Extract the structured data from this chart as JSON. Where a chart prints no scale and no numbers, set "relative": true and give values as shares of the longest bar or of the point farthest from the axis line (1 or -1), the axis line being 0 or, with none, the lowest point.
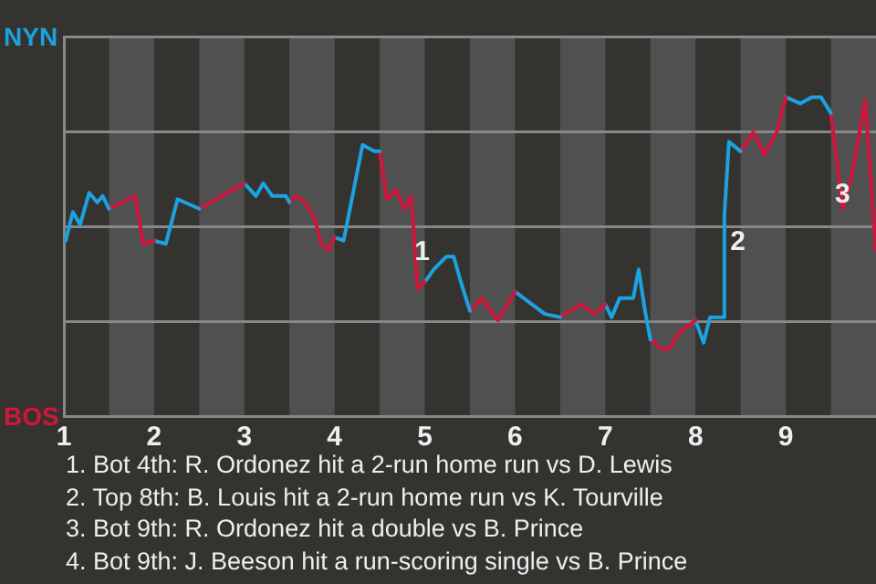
{
  "chart_data": {
    "type": "line",
    "relative": true,
    "xlim": [
      1,
      10
    ],
    "xticks": [
      1,
      2,
      3,
      4,
      5,
      6,
      7,
      8,
      9
    ],
    "grid": "y",
    "legend": false,
    "marker": "none",
    "line_style": "solid",
    "series": [
      {
        "color": "#1aa3e0",
        "x": [
          1.02,
          1.1,
          1.18,
          1.28,
          1.37,
          1.43,
          1.5
        ],
        "values": [
          0.55,
          0.64,
          0.6,
          0.7,
          0.67,
          0.69,
          0.65
        ]
      },
      {
        "color": "#d0163c",
        "x": [
          1.5,
          1.79,
          1.88,
          2
        ],
        "values": [
          0.65,
          0.69,
          0.54,
          0.55
        ]
      },
      {
        "color": "#1aa3e0",
        "x": [
          2,
          2.13,
          2.26,
          2.5
        ],
        "values": [
          0.55,
          0.54,
          0.68,
          0.65
        ]
      },
      {
        "color": "#d0163c",
        "x": [
          2.5,
          3
        ],
        "values": [
          0.65,
          0.73
        ]
      },
      {
        "color": "#1aa3e0",
        "x": [
          3,
          3.13,
          3.21,
          3.31,
          3.46,
          3.5
        ],
        "values": [
          0.73,
          0.69,
          0.73,
          0.69,
          0.69,
          0.67
        ]
      },
      {
        "color": "#d0163c",
        "x": [
          3.5,
          3.58,
          3.67,
          3.78,
          3.85,
          3.93,
          4
        ],
        "values": [
          0.67,
          0.69,
          0.67,
          0.62,
          0.54,
          0.52,
          0.56
        ]
      },
      {
        "color": "#1aa3e0",
        "x": [
          4,
          4.1,
          4.31,
          4.44,
          4.5
        ],
        "values": [
          0.56,
          0.55,
          0.85,
          0.83,
          0.83
        ]
      },
      {
        "color": "#d0163c",
        "x": [
          4.5,
          4.58,
          4.68,
          4.77,
          4.85,
          4.92,
          5
        ],
        "values": [
          0.83,
          0.68,
          0.71,
          0.65,
          0.69,
          0.4,
          0.42
        ]
      },
      {
        "color": "#1aa3e0",
        "x": [
          5,
          5.1,
          5.24,
          5.32,
          5.4,
          5.5
        ],
        "values": [
          0.42,
          0.46,
          0.5,
          0.5,
          0.42,
          0.33
        ]
      },
      {
        "color": "#d0163c",
        "x": [
          5.5,
          5.63,
          5.81,
          6
        ],
        "values": [
          0.33,
          0.37,
          0.3,
          0.39
        ]
      },
      {
        "color": "#1aa3e0",
        "x": [
          6,
          6.33,
          6.5
        ],
        "values": [
          0.39,
          0.32,
          0.31
        ]
      },
      {
        "color": "#d0163c",
        "x": [
          6.5,
          6.73,
          6.88,
          7
        ],
        "values": [
          0.31,
          0.35,
          0.32,
          0.35
        ]
      },
      {
        "color": "#1aa3e0",
        "x": [
          7,
          7.07,
          7.16,
          7.31,
          7.37,
          7.44,
          7.5
        ],
        "values": [
          0.35,
          0.31,
          0.37,
          0.37,
          0.46,
          0.33,
          0.24
        ]
      },
      {
        "color": "#d0163c",
        "x": [
          7.5,
          7.62,
          7.71,
          7.81,
          8
        ],
        "values": [
          0.24,
          0.21,
          0.21,
          0.26,
          0.3
        ]
      },
      {
        "color": "#1aa3e0",
        "x": [
          8,
          8.09,
          8.16,
          8.31,
          8.32,
          8.37,
          8.5
        ],
        "values": [
          0.3,
          0.23,
          0.31,
          0.31,
          0.63,
          0.86,
          0.83
        ]
      },
      {
        "color": "#d0163c",
        "x": [
          8.5,
          8.64,
          8.76,
          8.9,
          9
        ],
        "values": [
          0.83,
          0.89,
          0.82,
          0.89,
          1
        ]
      },
      {
        "color": "#1aa3e0",
        "x": [
          9,
          9.16,
          9.29,
          9.39,
          9.5
        ],
        "values": [
          1,
          0.98,
          1,
          1,
          0.95
        ]
      },
      {
        "color": "#d0163c",
        "x": [
          9.5,
          9.63,
          9.73,
          9.88,
          10
        ],
        "values": [
          0.95,
          0.65,
          0.75,
          0.99,
          0.52
        ]
      }
    ],
    "bands": [
      {
        "axis": "x",
        "from": 1.5,
        "to": 2,
        "color": "#505050"
      },
      {
        "axis": "x",
        "from": 2.5,
        "to": 3,
        "color": "#505050"
      },
      {
        "axis": "x",
        "from": 3.5,
        "to": 4,
        "color": "#505050"
      },
      {
        "axis": "x",
        "from": 4.5,
        "to": 5,
        "color": "#505050"
      },
      {
        "axis": "x",
        "from": 5.5,
        "to": 6,
        "color": "#505050"
      },
      {
        "axis": "x",
        "from": 6.5,
        "to": 7,
        "color": "#505050"
      },
      {
        "axis": "x",
        "from": 7.5,
        "to": 8,
        "color": "#505050"
      },
      {
        "axis": "x",
        "from": 8.5,
        "to": 9,
        "color": "#505050"
      },
      {
        "axis": "x",
        "from": 9.5,
        "to": 10,
        "color": "#505050"
      }
    ],
    "annotations": [
      "NYN",
      "BOS",
      {
        "text": "1",
        "x": 4.97,
        "y": 0.47
      },
      {
        "text": "2",
        "x": 8.47,
        "y": 0.5
      },
      {
        "text": "3",
        "x": 9.63,
        "y": 0.65
      },
      "1. Bot 4th: R. Ordonez hit a 2-run home run vs D. Lewis",
      "2. Top 8th: B. Louis hit a 2-run home run vs K. Tourville",
      "3. Bot 9th: R. Ordonez hit a double vs B. Prince",
      "4. Bot 9th: J. Beeson hit a run-scoring single vs B. Prince"
    ]
  }
}
